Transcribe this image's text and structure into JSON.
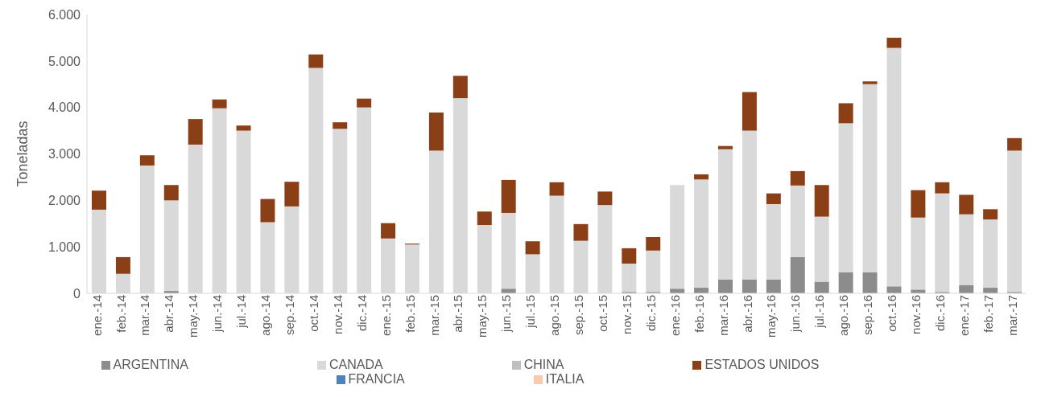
{
  "chart_data": {
    "type": "bar",
    "stacked": true,
    "ylabel": "Toneladas",
    "categories": [
      "ene.-14",
      "feb.-14",
      "mar.-14",
      "abr.-14",
      "may.-14",
      "jun.-14",
      "jul.-14",
      "ago.-14",
      "sep.-14",
      "oct.-14",
      "nov.-14",
      "dic.-14",
      "ene.-15",
      "feb.-15",
      "mar.-15",
      "abr.-15",
      "may.-15",
      "jun.-15",
      "jul.-15",
      "ago.-15",
      "sep.-15",
      "oct.-15",
      "nov.-15",
      "dic.-15",
      "ene.-16",
      "feb.-16",
      "mar.-16",
      "abr.-16",
      "may.-16",
      "jun.-16",
      "jul.-16",
      "ago.-16",
      "sep.-16",
      "oct.-16",
      "nov.-16",
      "dic.-16",
      "ene.-17",
      "feb.-17",
      "mar.-17"
    ],
    "series": [
      {
        "name": "ARGENTINA",
        "color": "#8c8c8c",
        "values": [
          0,
          0,
          0,
          50,
          0,
          0,
          0,
          0,
          0,
          0,
          0,
          0,
          0,
          0,
          0,
          0,
          0,
          100,
          0,
          0,
          0,
          0,
          30,
          30,
          100,
          120,
          300,
          300,
          300,
          780,
          250,
          450,
          450,
          150,
          80,
          30,
          180,
          120,
          30
        ]
      },
      {
        "name": "CANADA",
        "color": "#d9d9d9",
        "values": [
          1800,
          420,
          2750,
          1950,
          3200,
          3980,
          3500,
          1530,
          1870,
          4850,
          3540,
          4000,
          1180,
          1050,
          3070,
          4200,
          1470,
          1630,
          840,
          2100,
          1130,
          1900,
          610,
          890,
          2230,
          2330,
          2800,
          3200,
          1620,
          1540,
          1400,
          3210,
          4050,
          5130,
          1550,
          2120,
          1520,
          1470,
          3040
        ]
      },
      {
        "name": "CHINA",
        "color": "#bfbfbf",
        "values": [
          0,
          0,
          0,
          0,
          0,
          0,
          0,
          0,
          0,
          0,
          0,
          0,
          0,
          0,
          0,
          0,
          0,
          0,
          0,
          0,
          0,
          0,
          0,
          0,
          0,
          0,
          0,
          0,
          0,
          0,
          0,
          0,
          0,
          0,
          0,
          0,
          0,
          0,
          0
        ]
      },
      {
        "name": "ESTADOS UNIDOS",
        "color": "#8b3f17",
        "values": [
          410,
          360,
          220,
          330,
          550,
          190,
          110,
          500,
          530,
          290,
          140,
          190,
          330,
          20,
          820,
          480,
          290,
          710,
          280,
          290,
          360,
          290,
          330,
          290,
          0,
          110,
          70,
          830,
          230,
          310,
          680,
          430,
          60,
          220,
          590,
          240,
          420,
          220,
          270
        ]
      },
      {
        "name": "FRANCIA",
        "color": "#4f81bd",
        "values": [
          0,
          0,
          0,
          0,
          0,
          0,
          0,
          0,
          0,
          0,
          0,
          0,
          0,
          0,
          0,
          0,
          0,
          0,
          0,
          0,
          0,
          0,
          0,
          0,
          0,
          0,
          0,
          0,
          0,
          0,
          0,
          0,
          0,
          0,
          0,
          0,
          0,
          0,
          0
        ]
      },
      {
        "name": "ITALIA",
        "color": "#f8cbad",
        "values": [
          0,
          0,
          0,
          0,
          0,
          0,
          0,
          0,
          0,
          0,
          0,
          0,
          0,
          0,
          0,
          0,
          0,
          0,
          0,
          0,
          0,
          0,
          0,
          0,
          0,
          0,
          0,
          0,
          0,
          0,
          0,
          0,
          0,
          0,
          0,
          0,
          0,
          0,
          0
        ]
      }
    ],
    "ylim": [
      0,
      6000
    ],
    "yticks": [
      0,
      {
        "value": 1000,
        "label": "1.000"
      },
      {
        "value": 2000,
        "label": "2.000"
      },
      {
        "value": 3000,
        "label": "3.000"
      },
      {
        "value": 4000,
        "label": "4.000"
      },
      {
        "value": 5000,
        "label": "5.000"
      },
      {
        "value": 6000,
        "label": "6.000"
      }
    ],
    "grid": false,
    "legend": "bottom"
  }
}
